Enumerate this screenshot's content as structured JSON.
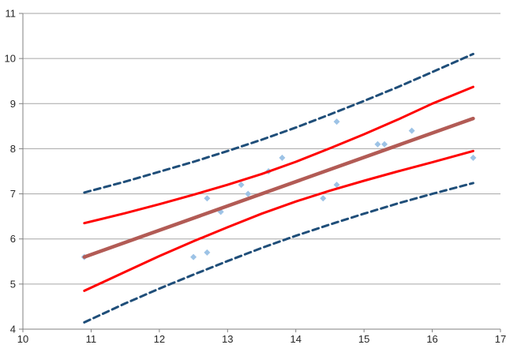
{
  "chart": {
    "background_color": "#FFFFFF",
    "grid_color": "#A6A6A6",
    "axis_color": "#808080",
    "tick_label_color": "#262626"
  },
  "chart_data": {
    "type": "scatter",
    "title": "",
    "xlabel": "",
    "ylabel": "",
    "xlim": [
      10,
      17
    ],
    "ylim": [
      4,
      11
    ],
    "xticks": [
      10,
      11,
      12,
      13,
      14,
      15,
      16,
      17
    ],
    "yticks": [
      4,
      5,
      6,
      7,
      8,
      9,
      10,
      11
    ],
    "grid": "horizontal",
    "legend": "none",
    "scatter": {
      "name": "observations",
      "marker": "diamond",
      "color": "#9DC3E6",
      "points": [
        [
          10.9,
          5.6
        ],
        [
          12.5,
          5.6
        ],
        [
          12.7,
          5.7
        ],
        [
          12.7,
          6.9
        ],
        [
          12.9,
          6.6
        ],
        [
          13.2,
          7.2
        ],
        [
          13.3,
          7.0
        ],
        [
          13.6,
          7.5
        ],
        [
          13.8,
          7.8
        ],
        [
          14.4,
          6.9
        ],
        [
          14.6,
          7.2
        ],
        [
          14.6,
          8.6
        ],
        [
          15.2,
          8.1
        ],
        [
          15.3,
          8.1
        ],
        [
          15.7,
          8.4
        ],
        [
          16.6,
          7.8
        ]
      ]
    },
    "series": [
      {
        "name": "regression-fit-line",
        "color": "#B25B55",
        "dash": "solid",
        "width": 4.5,
        "points": [
          [
            10.9,
            5.6
          ],
          [
            16.6,
            8.67
          ]
        ]
      },
      {
        "name": "confidence-upper-line",
        "color": "#FF0000",
        "dash": "solid",
        "width": 3,
        "points": [
          [
            10.9,
            6.35
          ],
          [
            11.5,
            6.57
          ],
          [
            12,
            6.77
          ],
          [
            12.5,
            6.98
          ],
          [
            13,
            7.2
          ],
          [
            13.5,
            7.44
          ],
          [
            14,
            7.71
          ],
          [
            14.5,
            8.01
          ],
          [
            15,
            8.32
          ],
          [
            15.5,
            8.65
          ],
          [
            16,
            9.0
          ],
          [
            16.6,
            9.37
          ]
        ]
      },
      {
        "name": "confidence-lower-line",
        "color": "#FF0000",
        "dash": "solid",
        "width": 3,
        "points": [
          [
            10.9,
            4.85
          ],
          [
            11.5,
            5.27
          ],
          [
            12,
            5.62
          ],
          [
            12.5,
            5.95
          ],
          [
            13,
            6.26
          ],
          [
            13.5,
            6.56
          ],
          [
            14,
            6.83
          ],
          [
            14.5,
            7.07
          ],
          [
            15,
            7.29
          ],
          [
            15.5,
            7.5
          ],
          [
            16,
            7.7
          ],
          [
            16.6,
            7.95
          ]
        ]
      },
      {
        "name": "prediction-upper-line",
        "color": "#1F4E79",
        "dash": "dashed",
        "width": 3,
        "points": [
          [
            10.9,
            7.03
          ],
          [
            11.5,
            7.27
          ],
          [
            12,
            7.49
          ],
          [
            12.5,
            7.71
          ],
          [
            13,
            7.95
          ],
          [
            13.5,
            8.2
          ],
          [
            14,
            8.47
          ],
          [
            14.5,
            8.76
          ],
          [
            15,
            9.06
          ],
          [
            15.5,
            9.37
          ],
          [
            16,
            9.7
          ],
          [
            16.6,
            10.1
          ]
        ]
      },
      {
        "name": "prediction-lower-line",
        "color": "#1F4E79",
        "dash": "dashed",
        "width": 3,
        "points": [
          [
            10.9,
            4.15
          ],
          [
            11.5,
            4.57
          ],
          [
            12,
            4.9
          ],
          [
            12.5,
            5.21
          ],
          [
            13,
            5.51
          ],
          [
            13.5,
            5.8
          ],
          [
            14,
            6.07
          ],
          [
            14.5,
            6.32
          ],
          [
            15,
            6.56
          ],
          [
            15.5,
            6.79
          ],
          [
            16,
            7.0
          ],
          [
            16.6,
            7.24
          ]
        ]
      }
    ]
  }
}
